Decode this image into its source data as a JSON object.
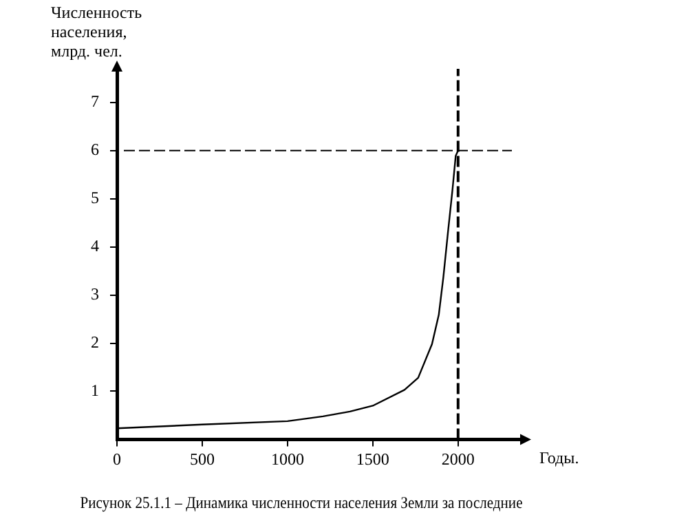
{
  "chart_data": {
    "type": "line",
    "title": "Рисунок 25.1.1 – Динамика численности населения Земли за последние",
    "ylabel": "Численность населения, млрд. чел.",
    "xlabel": "Годы.",
    "x": [
      0,
      500,
      1000,
      1208,
      1366,
      1500,
      1686,
      1766,
      1847,
      1887,
      1914,
      1940,
      1967,
      1986,
      2000
    ],
    "series": [
      {
        "color": "#000000",
        "values": [
          0.23,
          0.31,
          0.38,
          0.48,
          0.58,
          0.7,
          1.03,
          1.28,
          1.98,
          2.59,
          3.38,
          4.28,
          5.18,
          5.89,
          6
        ]
      }
    ],
    "xlim": [
      0,
      2380
    ],
    "xticks": [
      0,
      500,
      1000,
      1500,
      2000
    ],
    "ylim": [
      0,
      7.7
    ],
    "yticks": [
      1,
      2,
      3,
      4,
      5,
      6,
      7
    ],
    "ref_lines": [
      {
        "axis": "y",
        "value": 6,
        "line_style": "dashed",
        "color": "#000000"
      },
      {
        "axis": "x",
        "value": 2000,
        "line_style": "dashed",
        "color": "#000000"
      }
    ],
    "grid": false,
    "legend": false,
    "marker": "none",
    "line_style": "solid"
  }
}
